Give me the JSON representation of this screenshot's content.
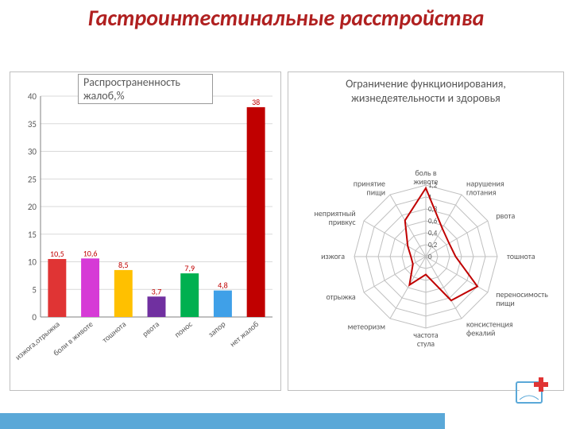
{
  "title": "Гастроинтестинальные расстройства",
  "bar_chart": {
    "type": "bar",
    "title": "Распространенность жалоб,%",
    "categories": [
      "изжога,отрыжка",
      "боли в животе",
      "тошнота",
      "рвота",
      "понос",
      "запор",
      "нет жалоб"
    ],
    "values": [
      10.5,
      10.6,
      8.5,
      3.7,
      7.9,
      4.8,
      38
    ],
    "value_labels": [
      "10,5",
      "10,6",
      "8,5",
      "3,7",
      "7,9",
      "4,8",
      "38"
    ],
    "bar_colors": [
      "#e03434",
      "#d63ad6",
      "#ffc000",
      "#7030a0",
      "#00b050",
      "#3fa0e8",
      "#c00000"
    ],
    "ylim": [
      0,
      40
    ],
    "ytick_step": 5,
    "grid_color": "#d9d9d9",
    "axis_color": "#808080",
    "tick_font": 11,
    "label_color": "#c00000",
    "label_font": 10,
    "bar_width": 0.55,
    "background": "#ffffff"
  },
  "radar_chart": {
    "type": "radar",
    "title_lines": [
      "Ограничение функционирования,",
      "жизнедеятельности и здоровья"
    ],
    "axes": [
      "боль в животе",
      "нарушения глотания",
      "рвота",
      "тошнота",
      "переносимость пищи",
      "консистенция фекалий",
      "частота стула",
      "метеоризм",
      "отрыжка",
      "изжога",
      "неприятный привкус",
      "принятие пищи"
    ],
    "values": [
      1.15,
      0.55,
      0.45,
      0.5,
      1.0,
      0.85,
      0.3,
      0.55,
      0.25,
      0.25,
      0.35,
      0.7
    ],
    "levels": [
      0,
      0.2,
      0.4,
      0.6,
      0.8,
      1.0,
      1.2
    ],
    "level_labels": [
      "0",
      "0,2",
      "0,4",
      "0,6",
      "0,8",
      "1",
      "1,2"
    ],
    "max": 1.2,
    "line_color": "#c00000",
    "line_width": 2,
    "grid_color": "#bfbfbf",
    "axis_color": "#bfbfbf",
    "label_font": 10,
    "label_color": "#595959",
    "background": "#ffffff"
  },
  "footer_color": "#5aa8d8",
  "logo": {
    "cross_color": "#e03434",
    "page_color": "#5aa8d8"
  }
}
